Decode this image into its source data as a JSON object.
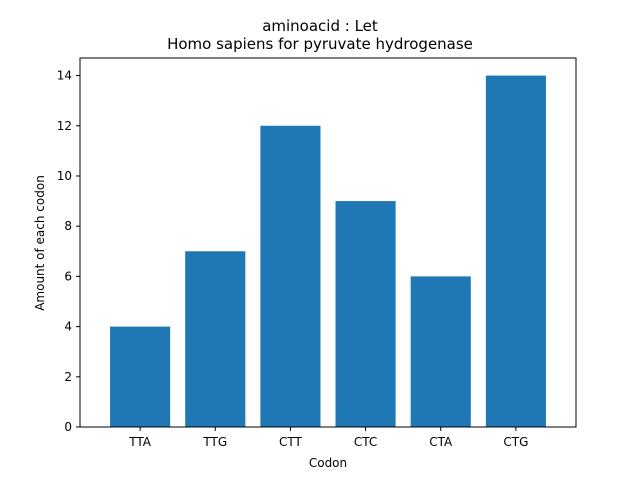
{
  "chart_data": {
    "type": "bar",
    "title_line1": "aminoacid : Let",
    "title_line2": "Homo sapiens for pyruvate hydrogenase",
    "xlabel": "Codon",
    "ylabel": "Amount of each codon",
    "categories": [
      "TTA",
      "TTG",
      "CTT",
      "CTC",
      "CTA",
      "CTG"
    ],
    "values": [
      4,
      7,
      12,
      9,
      6,
      14
    ],
    "ylim": [
      0,
      14.7
    ],
    "yticks": [
      0,
      2,
      4,
      6,
      8,
      10,
      12,
      14
    ],
    "bar_color": "#1f77b4",
    "grid": false,
    "legend": "none"
  }
}
